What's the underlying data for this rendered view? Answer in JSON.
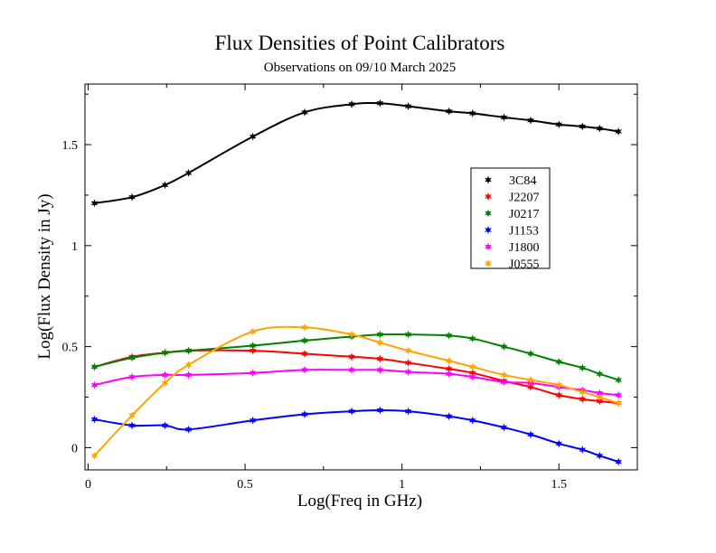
{
  "chart_data": {
    "type": "line",
    "title": "Flux Densities of Point Calibrators",
    "subtitle": "Observations on 09/10 March 2025",
    "xlabel": "Log(Freq in GHz)",
    "ylabel": "Log(Flux Density in Jy)",
    "xlim": [
      -0.01,
      1.75
    ],
    "ylim": [
      -0.11,
      1.8
    ],
    "xticks": [
      "0",
      "0.5",
      "1",
      "1.5"
    ],
    "yticks": [
      "0",
      "0.5",
      "1",
      "1.5"
    ],
    "legend_position": "top-right",
    "grid": false,
    "x": [
      0.02,
      0.14,
      0.245,
      0.32,
      0.525,
      0.69,
      0.84,
      0.93,
      1.02,
      1.15,
      1.225,
      1.325,
      1.41,
      1.5,
      1.575,
      1.63,
      1.69
    ],
    "series": [
      {
        "name": "3C84",
        "color": "#000000",
        "values": [
          1.21,
          1.24,
          1.3,
          1.36,
          1.54,
          1.66,
          1.7,
          1.705,
          1.69,
          1.665,
          1.655,
          1.635,
          1.62,
          1.6,
          1.59,
          1.58,
          1.565
        ]
      },
      {
        "name": "J2207",
        "color": "#ff0000",
        "values": [
          0.4,
          0.45,
          0.47,
          0.48,
          0.48,
          0.465,
          0.45,
          0.44,
          0.42,
          0.39,
          0.37,
          0.33,
          0.3,
          0.26,
          0.24,
          0.23,
          0.22
        ]
      },
      {
        "name": "J0217",
        "color": "#008000",
        "values": [
          0.4,
          0.445,
          0.47,
          0.48,
          0.505,
          0.53,
          0.55,
          0.56,
          0.56,
          0.555,
          0.54,
          0.5,
          0.465,
          0.425,
          0.395,
          0.365,
          0.335
        ]
      },
      {
        "name": "J1153",
        "color": "#0000ff",
        "values": [
          0.14,
          0.11,
          0.11,
          0.09,
          0.135,
          0.165,
          0.18,
          0.185,
          0.18,
          0.155,
          0.135,
          0.1,
          0.065,
          0.02,
          -0.01,
          -0.04,
          -0.07
        ]
      },
      {
        "name": "J1800",
        "color": "#ff00ff",
        "values": [
          0.31,
          0.35,
          0.36,
          0.36,
          0.37,
          0.385,
          0.385,
          0.385,
          0.375,
          0.365,
          0.35,
          0.325,
          0.32,
          0.3,
          0.285,
          0.27,
          0.26
        ]
      },
      {
        "name": "J0555",
        "color": "#ffa500",
        "values": [
          -0.04,
          0.16,
          0.32,
          0.41,
          0.575,
          0.595,
          0.56,
          0.52,
          0.48,
          0.43,
          0.4,
          0.36,
          0.335,
          0.31,
          0.275,
          0.25,
          0.22
        ]
      }
    ]
  }
}
